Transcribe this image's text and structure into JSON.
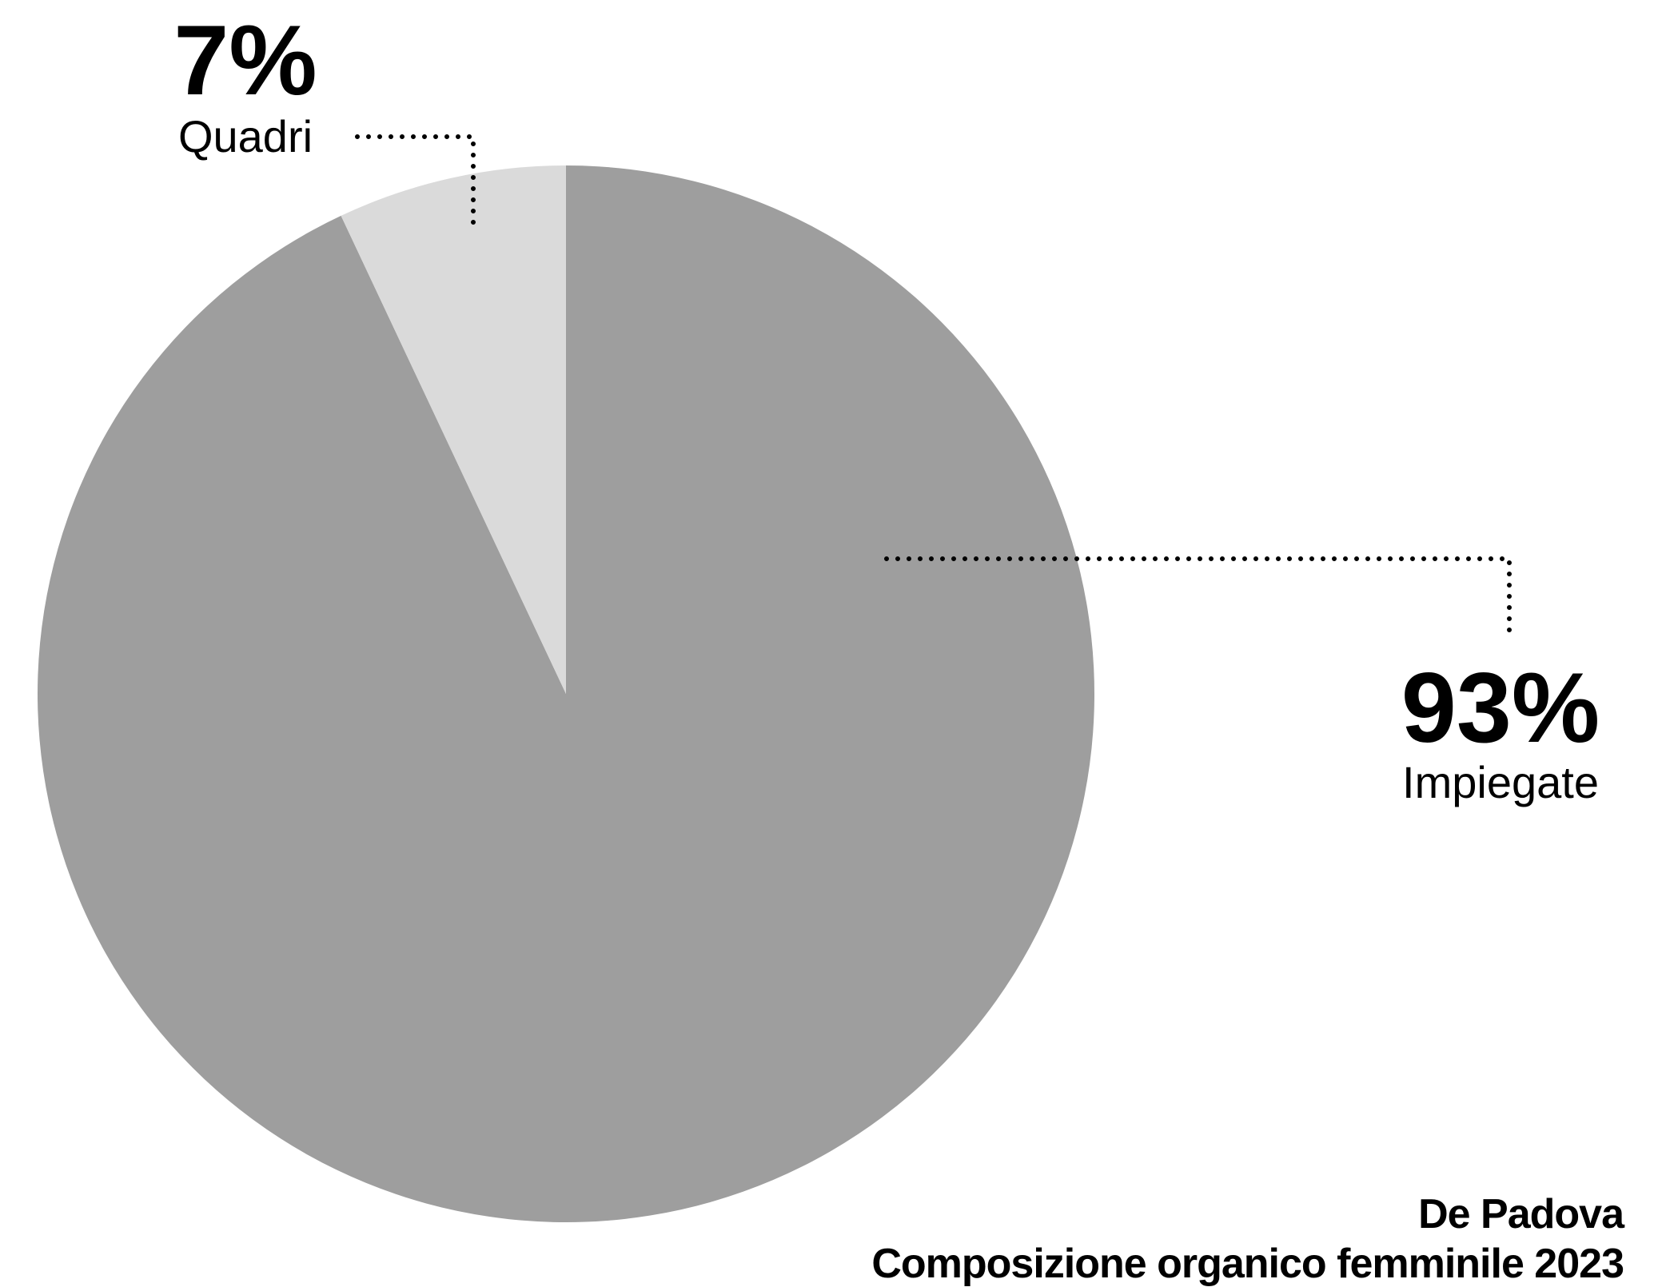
{
  "chart_data": {
    "type": "pie",
    "title": "De Padova",
    "subtitle": "Composizione organico femminile 2023",
    "categories": [
      "Impiegate",
      "Quadri"
    ],
    "values": [
      93,
      7
    ],
    "value_labels": [
      "93%",
      "7%"
    ],
    "colors": [
      "#9e9e9e",
      "#dadada"
    ]
  }
}
